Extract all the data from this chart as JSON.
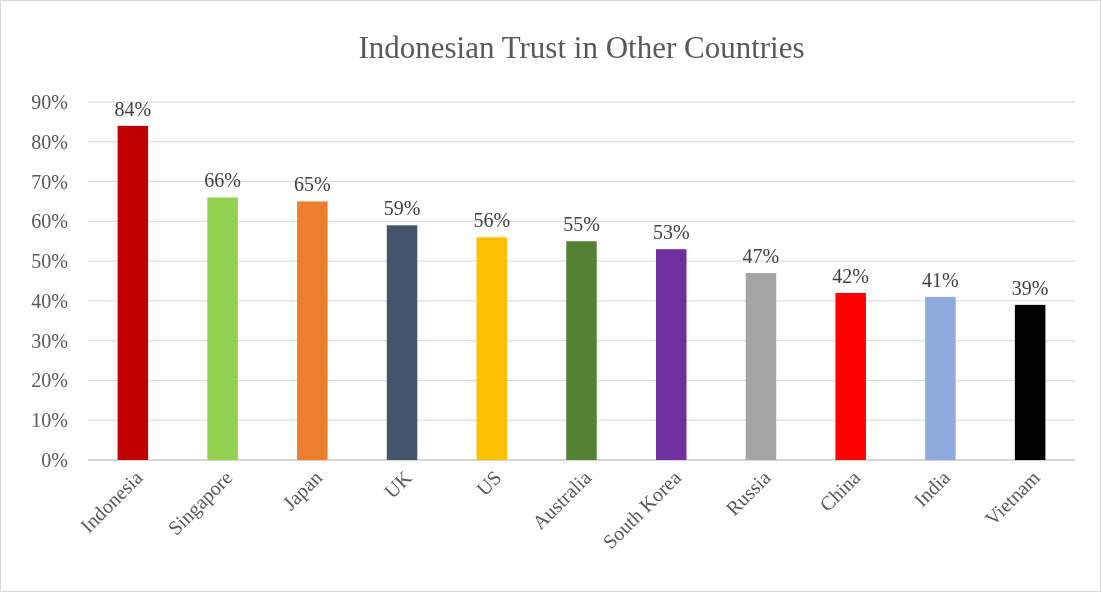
{
  "chart_data": {
    "type": "bar",
    "title": "Indonesian Trust in Other Countries",
    "categories": [
      "Indonesia",
      "Singapore",
      "Japan",
      "UK",
      "US",
      "Australia",
      "South Korea",
      "Russia",
      "China",
      "India",
      "Vietnam"
    ],
    "values": [
      84,
      66,
      65,
      59,
      56,
      55,
      53,
      47,
      42,
      41,
      39
    ],
    "colors": [
      "#c00000",
      "#92d050",
      "#ed7d31",
      "#44546a",
      "#ffc000",
      "#548235",
      "#7030a0",
      "#a5a5a5",
      "#ff0000",
      "#8faadc",
      "#000000"
    ],
    "value_labels": [
      "84%",
      "66%",
      "65%",
      "59%",
      "56%",
      "55%",
      "53%",
      "47%",
      "42%",
      "41%",
      "39%"
    ],
    "ylim": [
      0,
      90
    ],
    "yticks": [
      {
        "value": 0,
        "label": "0%"
      },
      {
        "value": 10,
        "label": "10%"
      },
      {
        "value": 20,
        "label": "20%"
      },
      {
        "value": 30,
        "label": "30%"
      },
      {
        "value": 40,
        "label": "40%"
      },
      {
        "value": 50,
        "label": "50%"
      },
      {
        "value": 60,
        "label": "60%"
      },
      {
        "value": 70,
        "label": "70%"
      },
      {
        "value": 80,
        "label": "80%"
      },
      {
        "value": 90,
        "label": "90%"
      }
    ],
    "grid": "y"
  }
}
